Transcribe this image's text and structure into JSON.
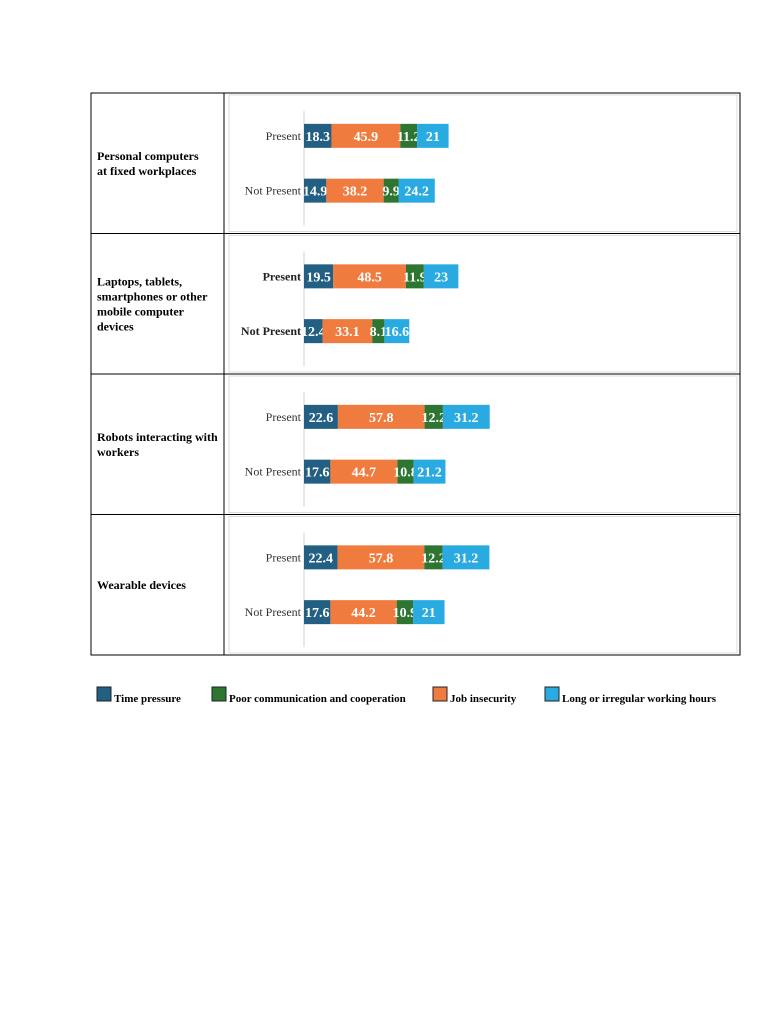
{
  "chart_data": {
    "type": "bar",
    "orientation": "horizontal-stacked",
    "title": "",
    "series_names": [
      "Time pressure",
      "Job insecurity",
      "Poor communication and cooperation",
      "Long or irregular working hours"
    ],
    "colors": {
      "Time pressure": "#225f82",
      "Job insecurity": "#f07b3f",
      "Poor communication and cooperation": "#2e7532",
      "Long or irregular working hours": "#29abe2"
    },
    "legend": [
      {
        "name": "Time pressure",
        "color": "#225f82"
      },
      {
        "name": "Poor communication and cooperation",
        "color": "#2e7532"
      },
      {
        "name": "Job insecurity",
        "color": "#f07b3f"
      },
      {
        "name": "Long or irregular working hours",
        "color": "#29abe2"
      }
    ],
    "groups": [
      {
        "label_lines": [
          "Personal  computers",
          "at fixed workplaces"
        ],
        "bars": [
          {
            "category": "Present",
            "values": [
              18.3,
              45.9,
              11.2,
              21
            ]
          },
          {
            "category": "Not Present",
            "values": [
              14.9,
              38.2,
              9.9,
              24.2
            ]
          }
        ]
      },
      {
        "label_lines": [
          "Laptops, tablets,",
          "smartphones or other",
          "mobile computer",
          "devices"
        ],
        "bold_categories": true,
        "bars": [
          {
            "category": "Present",
            "values": [
              19.5,
              48.5,
              11.9,
              23
            ]
          },
          {
            "category": "Not Present",
            "values": [
              12.4,
              33.1,
              8.1,
              16.6
            ]
          }
        ]
      },
      {
        "label_lines": [
          "Robots interacting with",
          "workers"
        ],
        "bars": [
          {
            "category": "Present",
            "values": [
              22.6,
              57.8,
              12.2,
              31.2
            ]
          },
          {
            "category": "Not Present",
            "values": [
              17.6,
              44.7,
              10.8,
              21.2
            ]
          }
        ]
      },
      {
        "label_lines": [
          "Wearable devices"
        ],
        "bars": [
          {
            "category": "Present",
            "values": [
              22.4,
              57.8,
              12.2,
              31.2
            ]
          },
          {
            "category": "Not Present",
            "values": [
              17.6,
              44.2,
              10.9,
              21
            ]
          }
        ]
      }
    ]
  }
}
